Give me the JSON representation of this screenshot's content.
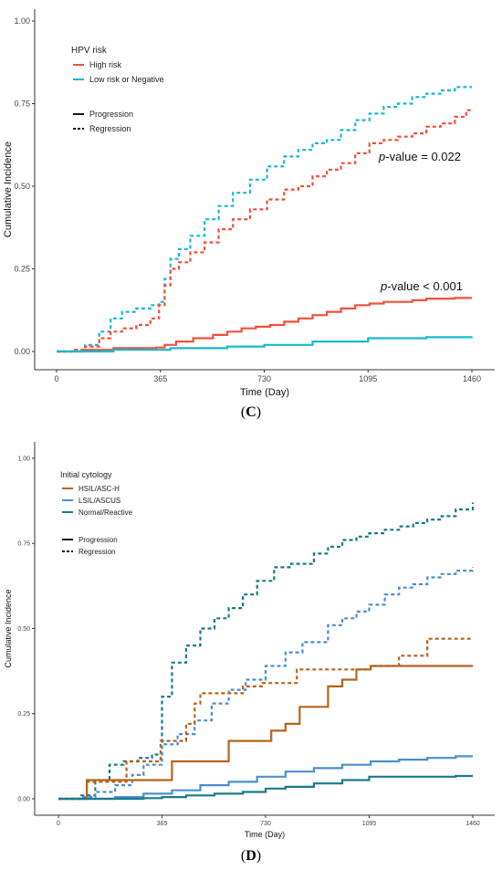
{
  "chart_data": [
    {
      "panel_label": "C",
      "type": "line",
      "xlabel": "Time (Day)",
      "ylabel": "Cumulative Incidence",
      "x_ticks": [
        0,
        365,
        730,
        1095,
        1460
      ],
      "y_ticks": [
        "0.00",
        "0.25",
        "0.50",
        "0.75",
        "1.00"
      ],
      "xlim": [
        0,
        1460
      ],
      "ylim": [
        0,
        1
      ],
      "grid": false,
      "legend": {
        "placement": "top-left",
        "title": "HPV risk",
        "color_entries": [
          {
            "label": "High risk",
            "color": "#f0503a"
          },
          {
            "label": "Low risk or Negative",
            "color": "#18b8d0"
          }
        ],
        "linetype_entries": [
          {
            "label": "Progression",
            "style": "solid"
          },
          {
            "label": "Regression",
            "style": "dashed"
          }
        ]
      },
      "annotations": [
        {
          "italic": "p",
          "text": "-value = 0.022",
          "x": 1180,
          "y": 0.58
        },
        {
          "italic": "p",
          "text": "-value < 0.001",
          "x": 1170,
          "y": 0.195
        }
      ],
      "series": [
        {
          "group": "Low risk or Negative",
          "type": "Regression",
          "color": "#18b8d0",
          "dash": true,
          "x": [
            0,
            60,
            100,
            150,
            190,
            230,
            280,
            330,
            360,
            380,
            400,
            430,
            470,
            520,
            570,
            620,
            680,
            740,
            800,
            850,
            900,
            950,
            1000,
            1050,
            1100,
            1150,
            1200,
            1250,
            1300,
            1350,
            1400,
            1440,
            1460
          ],
          "y": [
            0,
            0.005,
            0.02,
            0.06,
            0.1,
            0.12,
            0.13,
            0.14,
            0.15,
            0.22,
            0.28,
            0.31,
            0.35,
            0.4,
            0.44,
            0.48,
            0.52,
            0.56,
            0.59,
            0.61,
            0.63,
            0.64,
            0.67,
            0.7,
            0.72,
            0.74,
            0.75,
            0.77,
            0.78,
            0.79,
            0.8,
            0.8,
            0.8
          ]
        },
        {
          "group": "High risk",
          "type": "Regression",
          "color": "#f0503a",
          "dash": true,
          "x": [
            0,
            60,
            100,
            150,
            190,
            230,
            280,
            330,
            360,
            380,
            400,
            430,
            470,
            520,
            570,
            620,
            680,
            740,
            800,
            850,
            900,
            950,
            1000,
            1050,
            1100,
            1150,
            1200,
            1250,
            1300,
            1350,
            1400,
            1440,
            1460
          ],
          "y": [
            0,
            0.005,
            0.015,
            0.04,
            0.06,
            0.07,
            0.08,
            0.1,
            0.14,
            0.2,
            0.25,
            0.27,
            0.3,
            0.33,
            0.37,
            0.4,
            0.43,
            0.46,
            0.49,
            0.5,
            0.53,
            0.55,
            0.57,
            0.6,
            0.63,
            0.64,
            0.65,
            0.66,
            0.68,
            0.69,
            0.71,
            0.73,
            0.73
          ]
        },
        {
          "group": "High risk",
          "type": "Progression",
          "color": "#f0503a",
          "dash": false,
          "x": [
            0,
            100,
            200,
            300,
            350,
            380,
            420,
            480,
            550,
            600,
            650,
            700,
            750,
            800,
            850,
            900,
            950,
            1000,
            1050,
            1100,
            1150,
            1200,
            1250,
            1300,
            1350,
            1400,
            1460
          ],
          "y": [
            0,
            0.005,
            0.01,
            0.01,
            0.012,
            0.02,
            0.03,
            0.04,
            0.05,
            0.06,
            0.07,
            0.075,
            0.08,
            0.09,
            0.1,
            0.11,
            0.12,
            0.13,
            0.14,
            0.145,
            0.15,
            0.15,
            0.155,
            0.16,
            0.16,
            0.162,
            0.162
          ]
        },
        {
          "group": "Low risk or Negative",
          "type": "Progression",
          "color": "#18b8d0",
          "dash": false,
          "x": [
            0,
            200,
            400,
            600,
            730,
            900,
            1095,
            1200,
            1300,
            1460
          ],
          "y": [
            0,
            0.005,
            0.01,
            0.015,
            0.02,
            0.03,
            0.04,
            0.04,
            0.043,
            0.045
          ]
        }
      ]
    },
    {
      "panel_label": "D",
      "type": "line",
      "xlabel": "Time (Day)",
      "ylabel": "Cumulative Incidence",
      "x_ticks": [
        0,
        365,
        730,
        1095,
        1460
      ],
      "y_ticks": [
        "0.00",
        "0.25",
        "0.50",
        "0.75",
        "1.00"
      ],
      "xlim": [
        0,
        1460
      ],
      "ylim": [
        0,
        1
      ],
      "grid": false,
      "legend": {
        "placement": "top-left",
        "title": "Initial cytology",
        "color_entries": [
          {
            "label": "HSIL/ASC-H",
            "color": "#b5651d"
          },
          {
            "label": "LSIL/ASCUS",
            "color": "#4a8fd0"
          },
          {
            "label": "Normal/Reactive",
            "color": "#1a7a8c"
          }
        ],
        "linetype_entries": [
          {
            "label": "Progression",
            "style": "solid"
          },
          {
            "label": "Regression",
            "style": "dashed"
          }
        ]
      },
      "annotations": [],
      "series": [
        {
          "group": "Normal/Reactive",
          "type": "Regression",
          "color": "#1a7a8c",
          "dash": true,
          "x": [
            0,
            80,
            130,
            180,
            230,
            280,
            330,
            365,
            400,
            450,
            500,
            550,
            600,
            650,
            700,
            760,
            820,
            900,
            950,
            1000,
            1050,
            1095,
            1150,
            1200,
            1250,
            1300,
            1350,
            1400,
            1460
          ],
          "y": [
            0,
            0.01,
            0.05,
            0.1,
            0.11,
            0.12,
            0.13,
            0.3,
            0.4,
            0.45,
            0.5,
            0.53,
            0.56,
            0.6,
            0.64,
            0.68,
            0.69,
            0.72,
            0.74,
            0.76,
            0.77,
            0.78,
            0.79,
            0.8,
            0.81,
            0.82,
            0.83,
            0.85,
            0.87
          ]
        },
        {
          "group": "LSIL/ASCUS",
          "type": "Regression",
          "color": "#4a8fd0",
          "dash": true,
          "x": [
            0,
            80,
            130,
            200,
            260,
            300,
            365,
            420,
            480,
            540,
            600,
            660,
            730,
            800,
            860,
            950,
            1000,
            1050,
            1095,
            1150,
            1200,
            1250,
            1300,
            1350,
            1400,
            1460
          ],
          "y": [
            0,
            0.005,
            0.02,
            0.04,
            0.07,
            0.1,
            0.16,
            0.19,
            0.23,
            0.28,
            0.32,
            0.35,
            0.39,
            0.43,
            0.46,
            0.51,
            0.53,
            0.55,
            0.57,
            0.6,
            0.62,
            0.63,
            0.65,
            0.66,
            0.67,
            0.68
          ]
        },
        {
          "group": "HSIL/ASC-H",
          "type": "Regression",
          "color": "#b5651d",
          "dash": true,
          "x": [
            0,
            100,
            200,
            240,
            300,
            360,
            400,
            450,
            480,
            500,
            600,
            650,
            720,
            840,
            900,
            1000,
            1100,
            1200,
            1280,
            1300,
            1460
          ],
          "y": [
            0,
            0.05,
            0.05,
            0.11,
            0.11,
            0.17,
            0.17,
            0.22,
            0.28,
            0.31,
            0.31,
            0.33,
            0.34,
            0.38,
            0.38,
            0.38,
            0.39,
            0.42,
            0.42,
            0.47,
            0.47
          ]
        },
        {
          "group": "HSIL/ASC-H",
          "type": "Progression",
          "color": "#b5651d",
          "dash": false,
          "x": [
            0,
            100,
            200,
            300,
            360,
            400,
            500,
            600,
            700,
            750,
            800,
            850,
            900,
            950,
            1000,
            1050,
            1100,
            1200,
            1300,
            1400,
            1460
          ],
          "y": [
            0,
            0.055,
            0.055,
            0.055,
            0.055,
            0.11,
            0.11,
            0.17,
            0.17,
            0.2,
            0.22,
            0.27,
            0.27,
            0.33,
            0.35,
            0.38,
            0.39,
            0.39,
            0.39,
            0.39,
            0.39
          ]
        },
        {
          "group": "LSIL/ASCUS",
          "type": "Progression",
          "color": "#4a8fd0",
          "dash": false,
          "x": [
            0,
            200,
            300,
            400,
            500,
            600,
            700,
            800,
            900,
            1000,
            1100,
            1200,
            1300,
            1400,
            1460
          ],
          "y": [
            0,
            0.005,
            0.015,
            0.025,
            0.04,
            0.05,
            0.065,
            0.08,
            0.09,
            0.1,
            0.11,
            0.115,
            0.12,
            0.125,
            0.125
          ]
        },
        {
          "group": "Normal/Reactive",
          "type": "Progression",
          "color": "#1a7a8c",
          "dash": false,
          "x": [
            0,
            300,
            365,
            450,
            550,
            650,
            730,
            800,
            900,
            1000,
            1095,
            1200,
            1300,
            1400,
            1460
          ],
          "y": [
            0,
            0.002,
            0.005,
            0.01,
            0.015,
            0.02,
            0.03,
            0.035,
            0.045,
            0.055,
            0.065,
            0.065,
            0.065,
            0.067,
            0.067
          ]
        }
      ]
    }
  ]
}
